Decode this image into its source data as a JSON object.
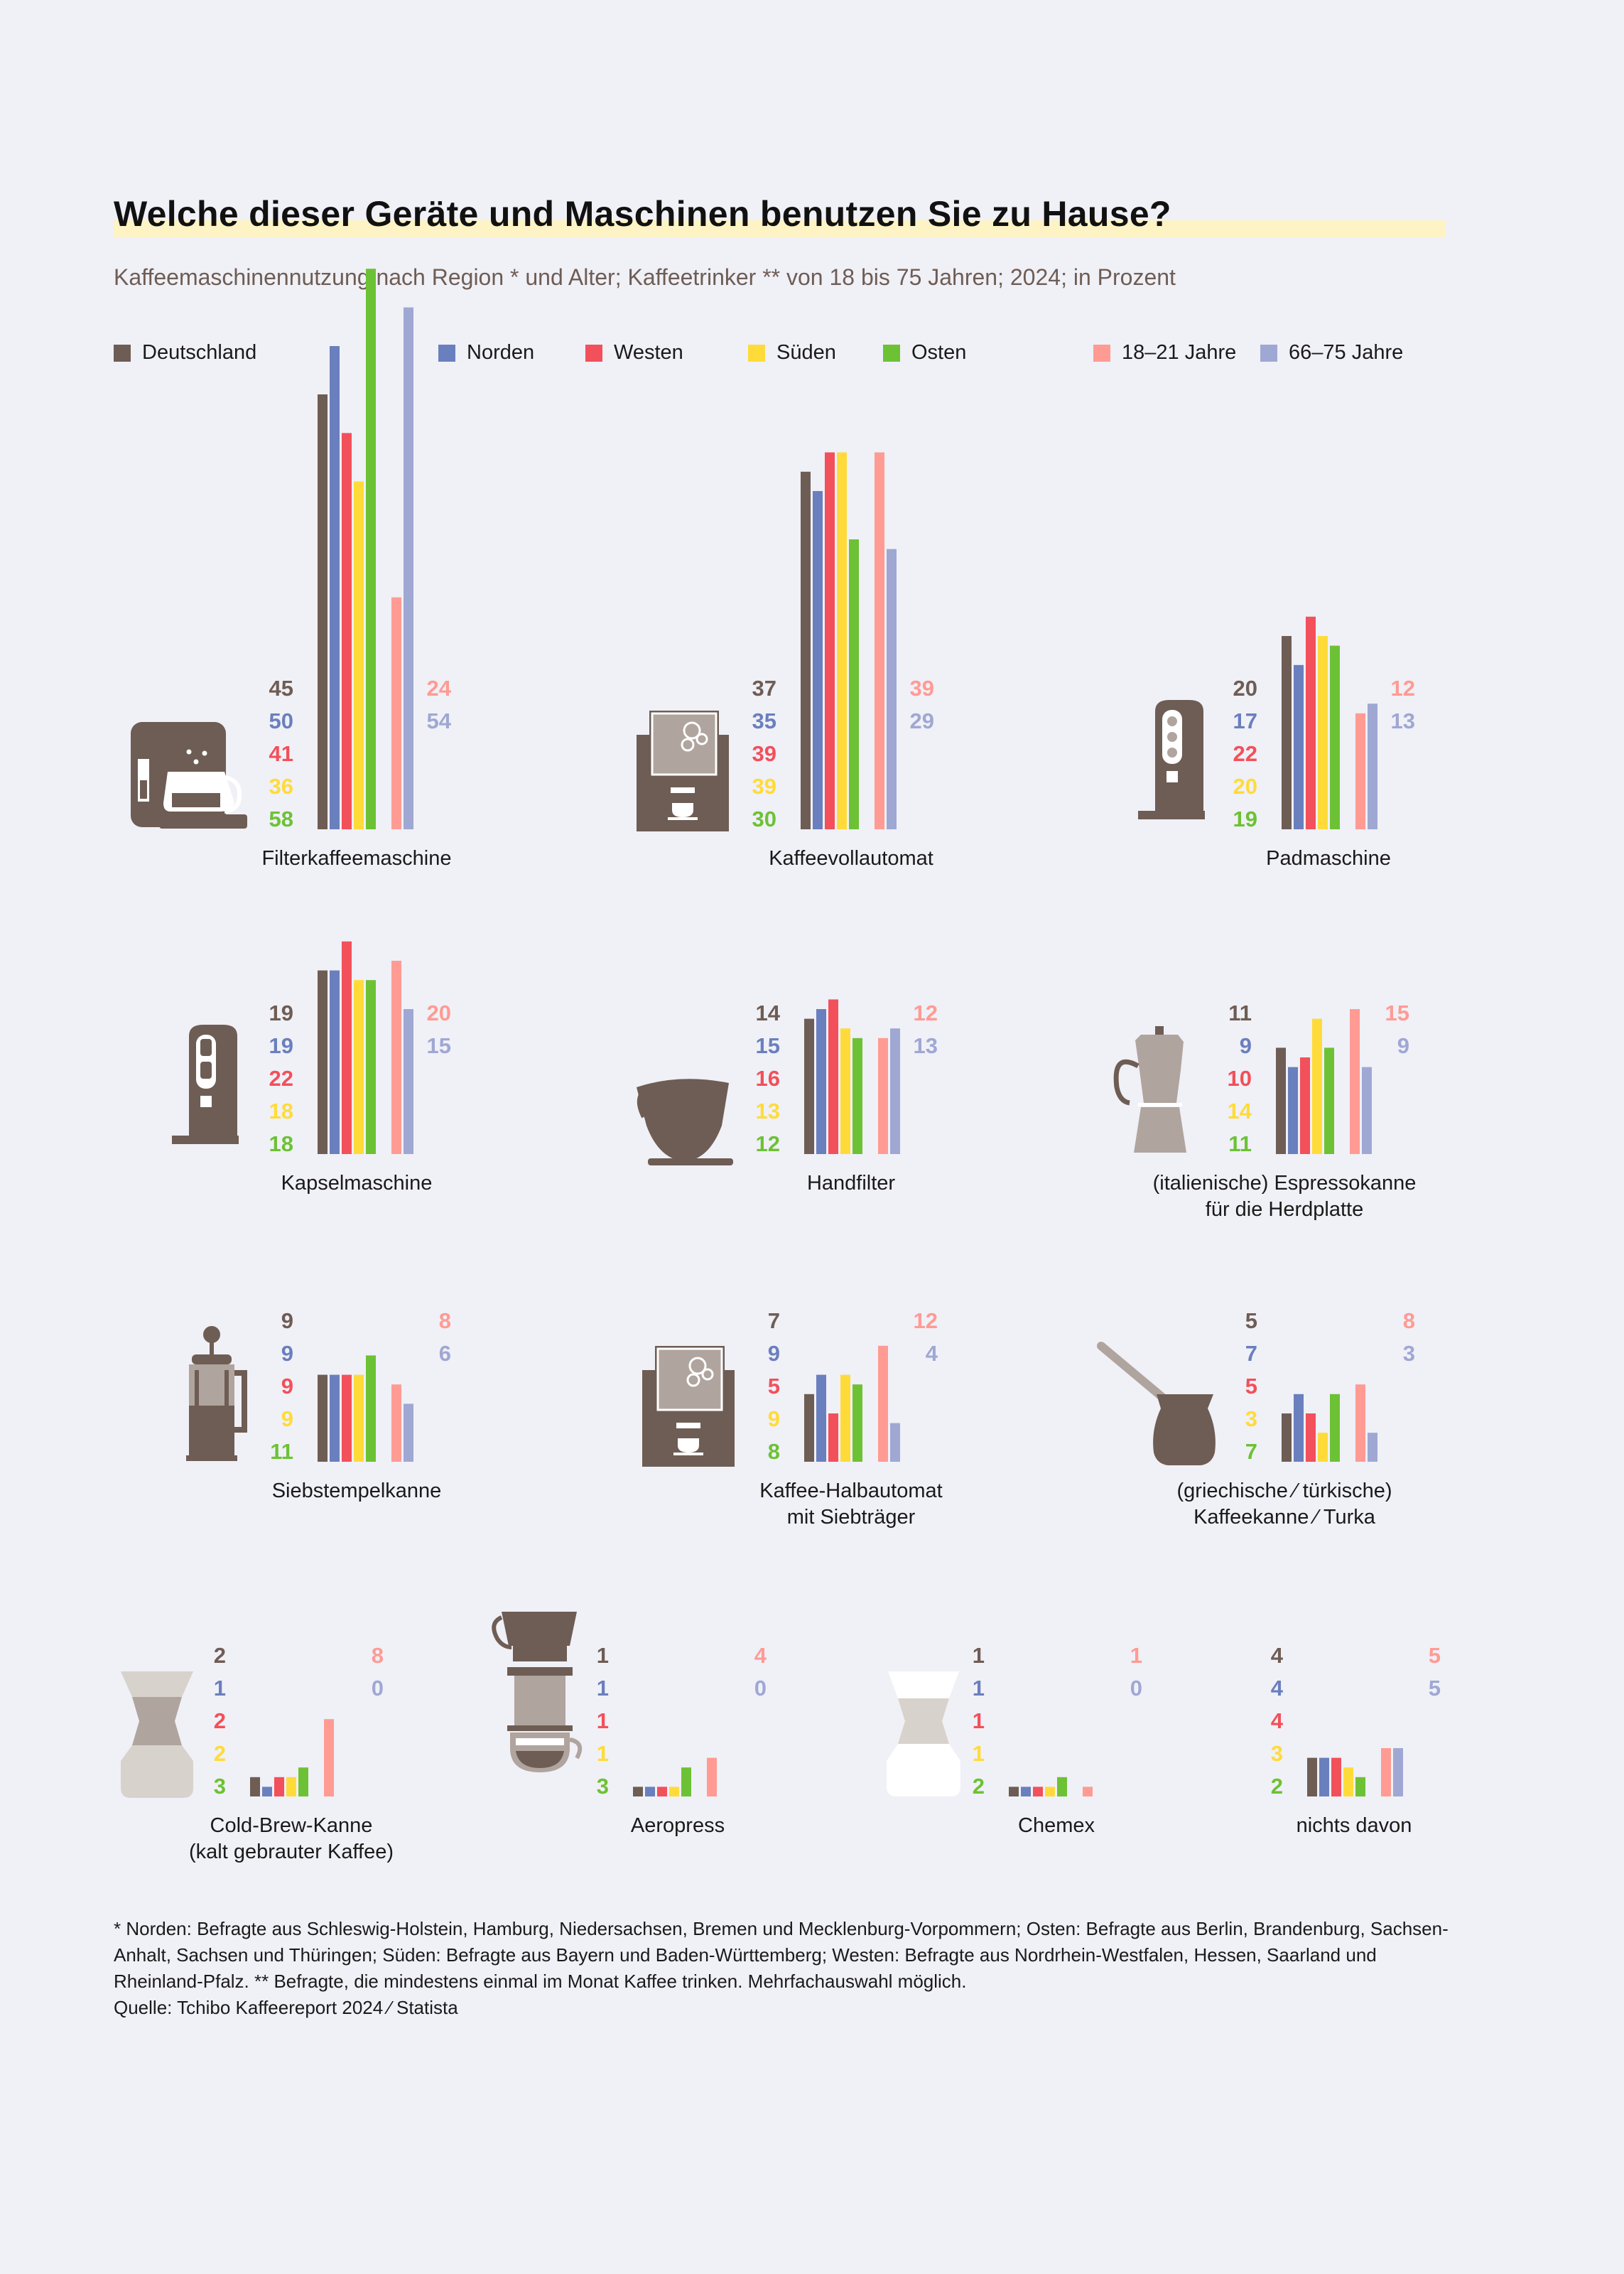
{
  "title": "Welche dieser Geräte und Maschinen benutzen Sie zu Hause?",
  "subtitle": "Kaffeemaschinennutzung nach Region * und Alter; Kaffeetrinker ** von 18 bis 75 Jahren; 2024; in Prozent",
  "colors": {
    "Deutschland": "#6e5d54",
    "Norden": "#6a7fbd",
    "Westen": "#f2505a",
    "Süden": "#ffdb3a",
    "Osten": "#6cc234",
    "18-21 Jahre": "#ff9b93",
    "66-75 Jahre": "#9fa8d3"
  },
  "legend": [
    {
      "name": "Deutschland",
      "color": "#6e5d54"
    },
    {
      "name": "Norden",
      "color": "#6a7fbd"
    },
    {
      "name": "Westen",
      "color": "#f2505a"
    },
    {
      "name": "Süden",
      "color": "#ffdb3a"
    },
    {
      "name": "Osten",
      "color": "#6cc234"
    },
    {
      "name": "18–21 Jahre",
      "color": "#ff9b93"
    },
    {
      "name": "66–75 Jahre",
      "color": "#9fa8d3"
    }
  ],
  "chart_data": {
    "type": "bar",
    "unit": "Prozent",
    "groups": [
      "Deutschland",
      "Norden",
      "Westen",
      "Süden",
      "Osten",
      "18–21 Jahre",
      "66–75 Jahre"
    ],
    "devices": [
      {
        "label": [
          "Filterkaffeemaschine"
        ],
        "icon": "filter-coffee-machine-icon",
        "region": [
          45,
          50,
          41,
          36,
          58
        ],
        "age": [
          24,
          54
        ]
      },
      {
        "label": [
          "Kaffeevollautomat"
        ],
        "icon": "fully-automatic-coffee-machine-icon",
        "region": [
          37,
          35,
          39,
          39,
          30
        ],
        "age": [
          39,
          29
        ]
      },
      {
        "label": [
          "Padmaschine"
        ],
        "icon": "pad-machine-icon",
        "region": [
          20,
          17,
          22,
          20,
          19
        ],
        "age": [
          12,
          13
        ]
      },
      {
        "label": [
          "Kapselmaschine"
        ],
        "icon": "capsule-machine-icon",
        "region": [
          19,
          19,
          22,
          18,
          18
        ],
        "age": [
          20,
          15
        ]
      },
      {
        "label": [
          "Handfilter"
        ],
        "icon": "hand-filter-icon",
        "region": [
          14,
          15,
          16,
          13,
          12
        ],
        "age": [
          12,
          13
        ]
      },
      {
        "label": [
          "(italienische) Espressokanne",
          "für die Herdplatte"
        ],
        "icon": "moka-pot-icon",
        "region": [
          11,
          9,
          10,
          14,
          11
        ],
        "age": [
          15,
          9
        ]
      },
      {
        "label": [
          "Siebstempelkanne"
        ],
        "icon": "french-press-icon",
        "region": [
          9,
          9,
          9,
          9,
          11
        ],
        "age": [
          8,
          6
        ]
      },
      {
        "label": [
          "Kaffee-Halbautomat",
          "mit Siebträger"
        ],
        "icon": "portafilter-machine-icon",
        "region": [
          7,
          9,
          5,
          9,
          8
        ],
        "age": [
          12,
          4
        ]
      },
      {
        "label": [
          "(griechische ⁄ türkische)",
          "Kaffeekanne ⁄ Turka"
        ],
        "icon": "turkish-pot-icon",
        "region": [
          5,
          7,
          5,
          3,
          7
        ],
        "age": [
          8,
          3
        ]
      },
      {
        "label": [
          "Cold-Brew-Kanne",
          "(kalt gebrauter Kaffee)"
        ],
        "icon": "cold-brew-jug-icon",
        "region": [
          2,
          1,
          2,
          2,
          3
        ],
        "age": [
          8,
          0
        ]
      },
      {
        "label": [
          "Aeropress"
        ],
        "icon": "aeropress-icon",
        "region": [
          1,
          1,
          1,
          1,
          3
        ],
        "age": [
          4,
          0
        ]
      },
      {
        "label": [
          "Chemex"
        ],
        "icon": "chemex-icon",
        "region": [
          1,
          1,
          1,
          1,
          2
        ],
        "age": [
          1,
          0
        ]
      },
      {
        "label": [
          "nichts davon"
        ],
        "icon": "",
        "region": [
          4,
          4,
          4,
          3,
          2
        ],
        "age": [
          5,
          5
        ]
      }
    ]
  },
  "footnote": [
    "* Norden: Befragte aus Schleswig-Holstein, Hamburg, Niedersachsen, Bremen und Mecklenburg-Vorpommern; Osten: Befragte aus Berlin, Brandenburg, Sachsen-Anhalt, Sachsen und Thüringen; Süden: Befragte aus Bayern und Baden-Württemberg; Westen: Befragte aus Nordrhein-Westfalen, Hessen, Saarland und Rheinland-Pfalz. ** Befragte, die mindestens einmal im Monat Kaffee trinken. Mehrfachauswahl möglich.",
    "Quelle: Tchibo Kaffeereport 2024 ⁄ Statista"
  ]
}
